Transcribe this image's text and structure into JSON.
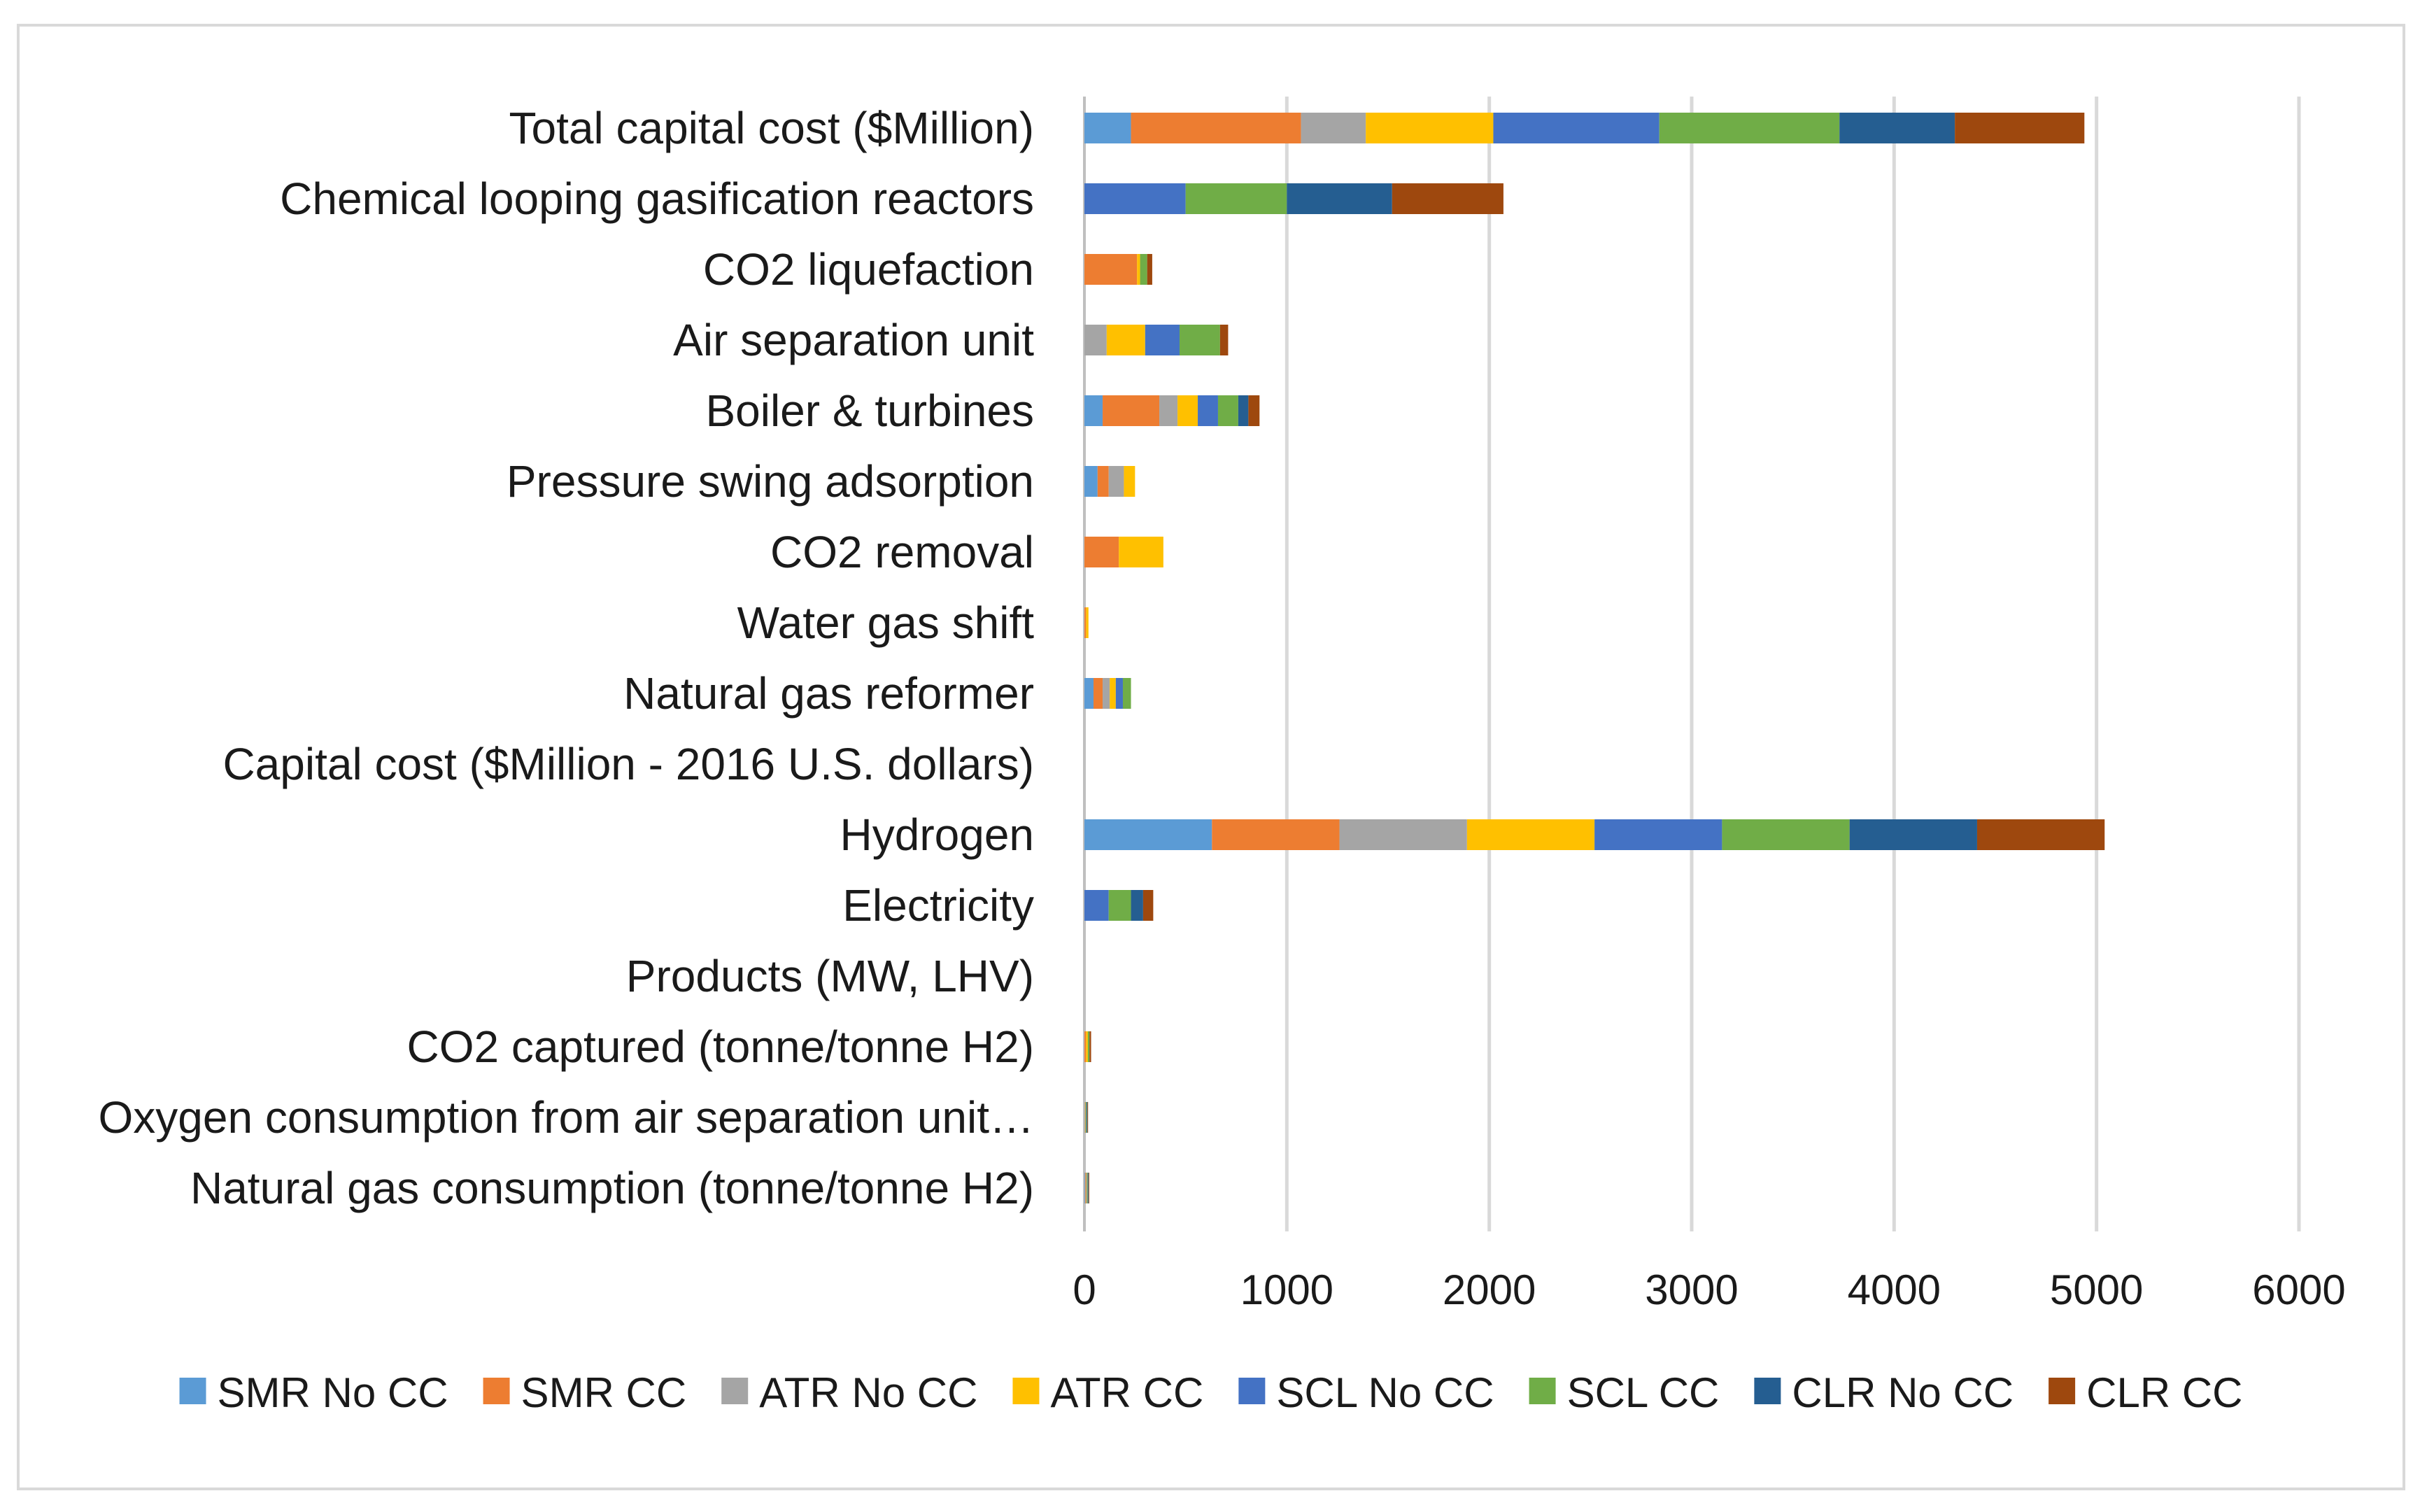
{
  "chart_data": {
    "type": "bar",
    "orientation": "horizontal",
    "stacked": true,
    "title": "",
    "xlabel": "",
    "ylabel": "",
    "xlim": [
      0,
      6000
    ],
    "x_ticks": [
      "0",
      "1000",
      "2000",
      "3000",
      "4000",
      "5000",
      "6000"
    ],
    "grid": true,
    "legend_position": "bottom",
    "categories": [
      "Total capital cost ($Million)",
      "Chemical looping gasification reactors",
      "CO2 liquefaction",
      "Air separation unit",
      "Boiler & turbines",
      "Pressure swing adsorption",
      "CO2 removal",
      "Water gas shift",
      "Natural gas reformer",
      "Capital cost ($Million - 2016 U.S. dollars)",
      "Hydrogen",
      "Electricity",
      "Products (MW, LHV)",
      "CO2 captured (tonne/tonne H2)",
      "Oxygen consumption from air separation unit…",
      "Natural gas consumption (tonne/tonne H2)"
    ],
    "series": [
      {
        "name": "SMR No CC",
        "color": "#5b9bd5",
        "values": [
          230,
          0,
          0,
          0,
          90,
          65,
          0,
          0,
          45,
          0,
          630,
          0,
          0,
          0,
          0,
          3
        ]
      },
      {
        "name": "SMR CC",
        "color": "#ed7d31",
        "values": [
          840,
          0,
          260,
          0,
          280,
          55,
          170,
          8,
          45,
          0,
          630,
          0,
          0,
          8,
          0,
          3
        ]
      },
      {
        "name": "ATR No CC",
        "color": "#a5a5a5",
        "values": [
          320,
          0,
          0,
          110,
          90,
          75,
          0,
          0,
          35,
          0,
          630,
          0,
          0,
          0,
          3,
          3
        ]
      },
      {
        "name": "ATR CC",
        "color": "#ffc000",
        "values": [
          630,
          0,
          15,
          190,
          100,
          55,
          220,
          12,
          30,
          0,
          630,
          0,
          0,
          9,
          3,
          3
        ]
      },
      {
        "name": "SCL No CC",
        "color": "#4472c4",
        "values": [
          820,
          500,
          0,
          170,
          100,
          0,
          0,
          0,
          35,
          0,
          630,
          120,
          0,
          0,
          3,
          3
        ]
      },
      {
        "name": "SCL CC",
        "color": "#70ad47",
        "values": [
          890,
          500,
          35,
          200,
          100,
          0,
          0,
          0,
          40,
          0,
          630,
          110,
          0,
          8,
          3,
          3
        ]
      },
      {
        "name": "CLR No CC",
        "color": "#255e91",
        "values": [
          570,
          520,
          0,
          0,
          50,
          0,
          0,
          0,
          0,
          0,
          630,
          60,
          0,
          0,
          3,
          3
        ]
      },
      {
        "name": "CLR CC",
        "color": "#9e480e",
        "values": [
          640,
          550,
          25,
          40,
          55,
          0,
          0,
          0,
          0,
          0,
          630,
          50,
          0,
          8,
          3,
          3
        ]
      }
    ]
  }
}
